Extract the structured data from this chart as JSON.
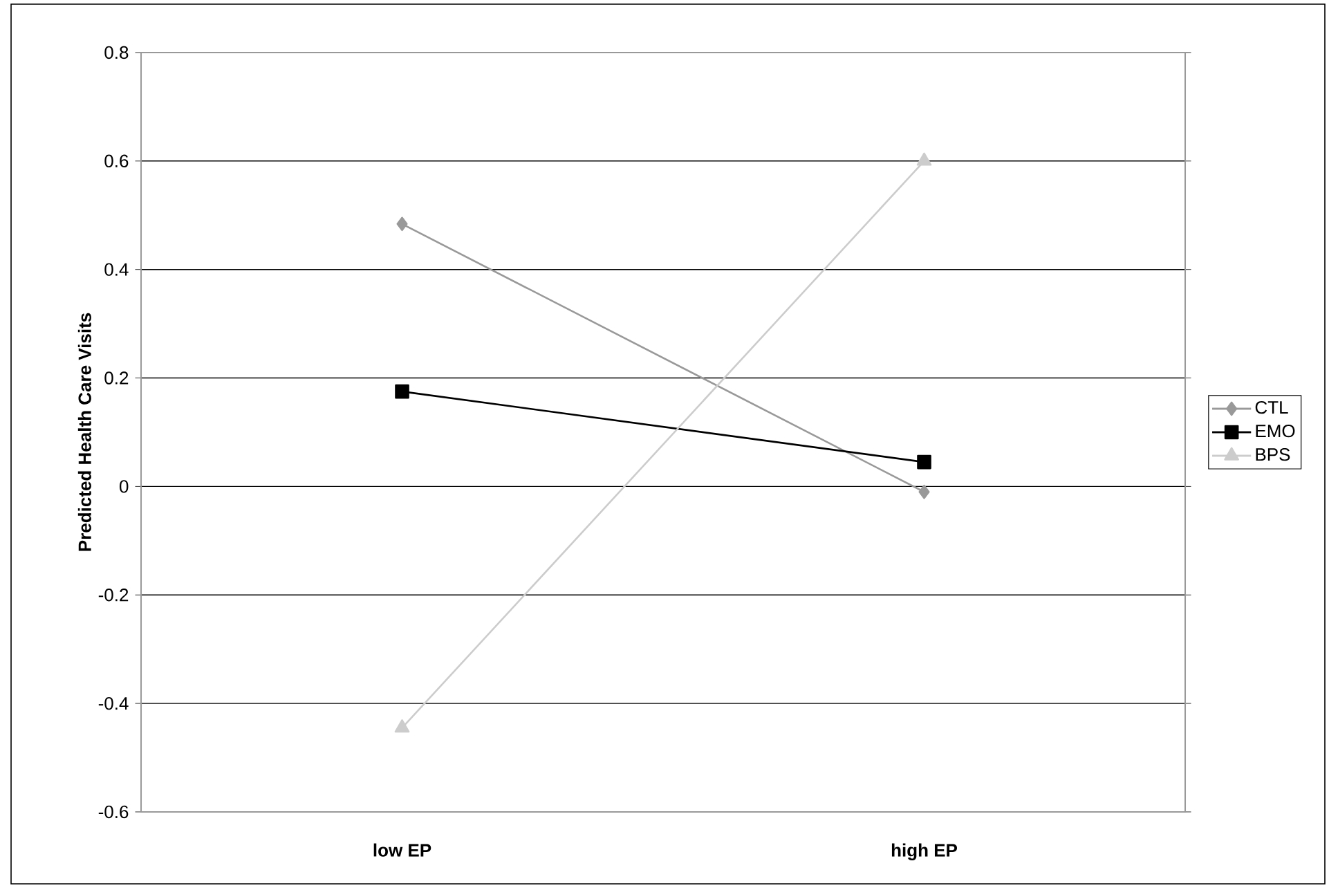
{
  "chart_data": {
    "type": "line",
    "ylabel": "Predicted Health Care Visits",
    "categories": [
      "low EP",
      "high EP"
    ],
    "series": [
      {
        "name": "CTL",
        "color": "#999999",
        "marker": "diamond",
        "values": [
          0.484,
          -0.01
        ]
      },
      {
        "name": "EMO",
        "color": "#000000",
        "marker": "square",
        "values": [
          0.175,
          0.045
        ]
      },
      {
        "name": "BPS",
        "color": "#cccccc",
        "marker": "triangle",
        "values": [
          -0.445,
          0.6
        ]
      }
    ],
    "ylim": [
      -0.6,
      0.8
    ],
    "yticks": [
      -0.6,
      -0.4,
      -0.2,
      0,
      0.2,
      0.4,
      0.6,
      0.8
    ],
    "grid": "y",
    "legend": "right",
    "line_style": "solid"
  }
}
